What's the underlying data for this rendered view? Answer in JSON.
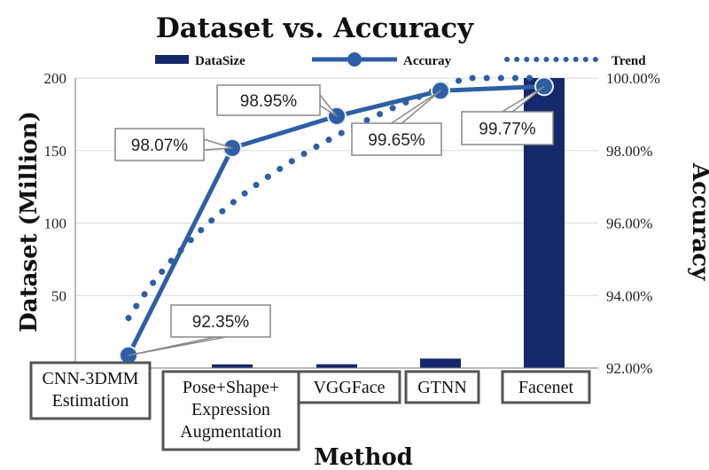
{
  "chart_data": {
    "type": "bar+line",
    "title": "Dataset vs. Accuracy",
    "xlabel": "Method",
    "ylabel_left": "Dataset  (Million)",
    "ylabel_right": "Accuracy",
    "categories": [
      "CNN-3DMM\nEstimation",
      "Pose+Shape+\nExpression\nAugmentation",
      "VGGFace",
      "GTNN",
      "Facenet"
    ],
    "ylim_left": [
      0,
      200
    ],
    "left_ticks": [
      "0",
      "50",
      "100",
      "150",
      "200"
    ],
    "ylim_right": [
      92,
      100
    ],
    "right_ticks": [
      "92.00%",
      "94.00%",
      "96.00%",
      "98.00%",
      "100.00%"
    ],
    "legend_position": "top",
    "grid": true,
    "series": [
      {
        "name": "DataSize",
        "kind": "bar",
        "axis": "left",
        "values": [
          0.5,
          2.5,
          2.6,
          6.5,
          200
        ]
      },
      {
        "name": "Accuray",
        "kind": "line",
        "axis": "right",
        "values": [
          92.35,
          98.07,
          98.95,
          99.65,
          99.77
        ],
        "labels": [
          "92.35%",
          "98.07%",
          "98.95%",
          "99.65%",
          "99.77%"
        ]
      },
      {
        "name": "Trend",
        "kind": "trendline",
        "axis": "right",
        "model": "logarithmic"
      }
    ],
    "colors": {
      "bar": "#14286b",
      "line": "#2e5fa6",
      "trend": "#2e5fa6",
      "grid": "#d9d9d9"
    }
  }
}
